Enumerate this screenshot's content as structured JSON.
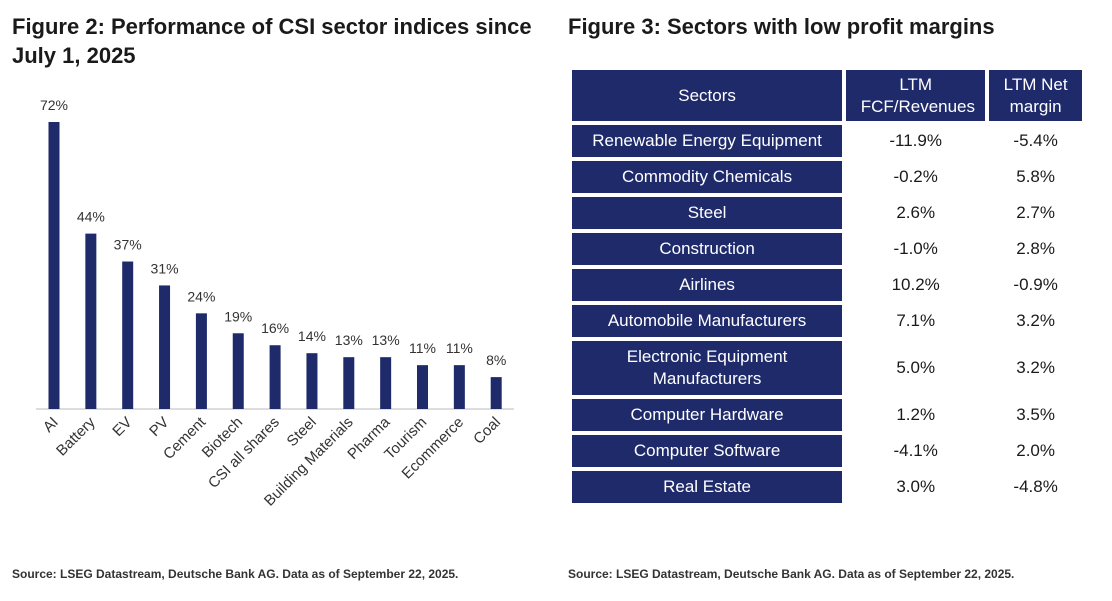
{
  "left_figure": {
    "title": "Figure 2: Performance of CSI sector indices since July 1, 2025",
    "source": "Source: LSEG Datastream, Deutsche Bank AG. Data as of September 22, 2025."
  },
  "right_figure": {
    "title": "Figure 3: Sectors with low profit margins",
    "source": "Source: LSEG Datastream, Deutsche Bank AG. Data as of September 22, 2025.",
    "headers": [
      "Sectors",
      "LTM FCF/Revenues",
      "LTM Net margin"
    ],
    "rows": [
      {
        "sector": "Renewable Energy Equipment",
        "fcf": "-11.9%",
        "net": "-5.4%"
      },
      {
        "sector": "Commodity Chemicals",
        "fcf": "-0.2%",
        "net": "5.8%"
      },
      {
        "sector": "Steel",
        "fcf": "2.6%",
        "net": "2.7%"
      },
      {
        "sector": "Construction",
        "fcf": "-1.0%",
        "net": "2.8%"
      },
      {
        "sector": "Airlines",
        "fcf": "10.2%",
        "net": "-0.9%"
      },
      {
        "sector": "Automobile Manufacturers",
        "fcf": "7.1%",
        "net": "3.2%"
      },
      {
        "sector": "Electronic Equipment Manufacturers",
        "fcf": "5.0%",
        "net": "3.2%"
      },
      {
        "sector": "Computer Hardware",
        "fcf": "1.2%",
        "net": "3.5%"
      },
      {
        "sector": "Computer Software",
        "fcf": "-4.1%",
        "net": "2.0%"
      },
      {
        "sector": "Real Estate",
        "fcf": "3.0%",
        "net": "-4.8%"
      }
    ]
  },
  "colors": {
    "bar": "#1f2a6b",
    "header_bg": "#1f2a6b",
    "axis": "#bbbbbb"
  },
  "chart_data": {
    "type": "bar",
    "title": "Figure 2: Performance of CSI sector indices since July 1, 2025",
    "categories": [
      "AI",
      "Battery",
      "EV",
      "PV",
      "Cement",
      "Biotech",
      "CSI all shares",
      "Steel",
      "Building Materials",
      "Pharma",
      "Tourism",
      "Ecommerce",
      "Coal"
    ],
    "values": [
      72,
      44,
      37,
      31,
      24,
      19,
      16,
      14,
      13,
      13,
      11,
      11,
      8
    ],
    "data_labels": [
      "72%",
      "44%",
      "37%",
      "31%",
      "24%",
      "19%",
      "16%",
      "14%",
      "13%",
      "13%",
      "11%",
      "11%",
      "8%"
    ],
    "xlabel": "",
    "ylabel": "",
    "ylim": [
      0,
      72
    ],
    "legend": "none",
    "grid": false
  }
}
